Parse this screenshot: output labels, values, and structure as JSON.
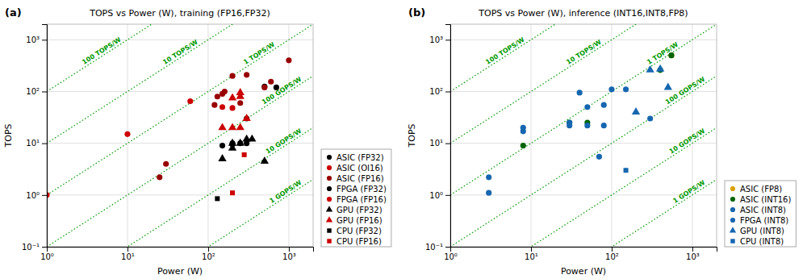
{
  "chart_data": [
    {
      "type": "scatter",
      "title": "TOPS vs Power (W), training (FP16,FP32)",
      "x_label": "Power (W)",
      "y_label": "TOPS",
      "log": true,
      "xlim": [
        1,
        2000
      ],
      "ylim": [
        0.1,
        2000
      ],
      "xticks": [
        {
          "value": 1,
          "label": "10⁰"
        },
        {
          "value": 10,
          "label": "10¹"
        },
        {
          "value": 100,
          "label": "10²"
        },
        {
          "value": 1000,
          "label": "10³"
        }
      ],
      "yticks": [
        {
          "value": 0.1,
          "label": "10⁻¹"
        },
        {
          "value": 1,
          "label": "10⁰"
        },
        {
          "value": 10,
          "label": "10¹"
        },
        {
          "value": 100,
          "label": "10²"
        },
        {
          "value": 1000,
          "label": "10³"
        }
      ],
      "grid": true,
      "legend": "right",
      "annotations": [
        {
          "text": "(a)"
        },
        {
          "text": "100 TOPS/W",
          "slope": 100,
          "x": 3,
          "y": 300,
          "color": "#009900",
          "line_style": "dotted"
        },
        {
          "text": "10 TOPS/W",
          "slope": 10,
          "x": 30,
          "y": 300,
          "color": "#009900",
          "line_style": "dotted"
        },
        {
          "text": "1 TOPS/W",
          "slope": 1,
          "x": 300,
          "y": 300,
          "color": "#009900",
          "line_style": "dotted"
        },
        {
          "text": "100 GOPS/W",
          "slope": 0.1,
          "x": 1600,
          "y": 160,
          "color": "#009900",
          "line_style": "dotted"
        },
        {
          "text": "10 GOPS/W",
          "slope": 0.01,
          "x": 1600,
          "y": 16,
          "color": "#009900",
          "line_style": "dotted"
        },
        {
          "text": "1 GOPS/W",
          "slope": 0.001,
          "x": 1600,
          "y": 1.6,
          "color": "#009900",
          "line_style": "dotted"
        }
      ],
      "series": [
        {
          "name": "ASIC (FP32)",
          "color": "#000000",
          "marker": "circle",
          "x": [
            200,
            300,
            500,
            700
          ],
          "values": [
            10,
            30,
            125,
            120
          ]
        },
        {
          "name": "ASIC (OI16)",
          "color": "#cc0000",
          "marker": "circle",
          "x": [
            1,
            10
          ],
          "values": [
            1,
            15
          ]
        },
        {
          "name": "ASIC (FP16)",
          "color": "#990000",
          "marker": "circle",
          "x": [
            25,
            30,
            120,
            130,
            150,
            160,
            200,
            250,
            300,
            500,
            600,
            1000
          ],
          "values": [
            2.2,
            4,
            55,
            80,
            90,
            100,
            200,
            60,
            210,
            120,
            155,
            400
          ]
        },
        {
          "name": "FPGA (FP32)",
          "color": "#000000",
          "marker": "circle",
          "x": [
            150,
            200,
            250,
            300
          ],
          "values": [
            9,
            9.5,
            10,
            10
          ]
        },
        {
          "name": "FPGA (FP16)",
          "color": "#cc0000",
          "marker": "circle",
          "x": [
            60,
            150,
            200
          ],
          "values": [
            65,
            50,
            48
          ]
        },
        {
          "name": "GPU (FP32)",
          "color": "#000000",
          "marker": "triangle",
          "x": [
            150,
            200,
            200,
            250,
            300,
            350,
            500
          ],
          "values": [
            5,
            8,
            10,
            10,
            12,
            12,
            4.5
          ]
        },
        {
          "name": "GPU (FP16)",
          "color": "#cc0000",
          "marker": "triangle",
          "x": [
            150,
            200,
            250,
            200,
            250,
            250,
            300
          ],
          "values": [
            20,
            20,
            20,
            75,
            80,
            95,
            30
          ]
        },
        {
          "name": "CPU (FP32)",
          "color": "#000000",
          "marker": "square",
          "x": [
            130
          ],
          "values": [
            0.85
          ]
        },
        {
          "name": "CPU (FP16)",
          "color": "#cc0000",
          "marker": "square",
          "x": [
            200,
            280
          ],
          "values": [
            1.1,
            6
          ]
        }
      ]
    },
    {
      "type": "scatter",
      "title": "TOPS vs Power (W), inference (INT16,INT8,FP8)",
      "x_label": "Power (W)",
      "y_label": "TOPS",
      "log": true,
      "xlim": [
        1,
        2000
      ],
      "ylim": [
        0.1,
        2000
      ],
      "xticks": [
        {
          "value": 1,
          "label": "10⁰"
        },
        {
          "value": 10,
          "label": "10¹"
        },
        {
          "value": 100,
          "label": "10²"
        },
        {
          "value": 1000,
          "label": "10³"
        }
      ],
      "yticks": [
        {
          "value": 0.1,
          "label": "10⁻¹"
        },
        {
          "value": 1,
          "label": "10⁰"
        },
        {
          "value": 10,
          "label": "10¹"
        },
        {
          "value": 100,
          "label": "10²"
        },
        {
          "value": 1000,
          "label": "10³"
        }
      ],
      "grid": true,
      "legend": "right",
      "annotations": [
        {
          "text": "(b)"
        },
        {
          "text": "100 TOPS/W",
          "slope": 100,
          "x": 3,
          "y": 300,
          "color": "#009900",
          "line_style": "dotted"
        },
        {
          "text": "10 TOPS/W",
          "slope": 10,
          "x": 30,
          "y": 300,
          "color": "#009900",
          "line_style": "dotted"
        },
        {
          "text": "1 TOPS/W",
          "slope": 1,
          "x": 300,
          "y": 300,
          "color": "#009900",
          "line_style": "dotted"
        },
        {
          "text": "100 GOPS/W",
          "slope": 0.1,
          "x": 1600,
          "y": 160,
          "color": "#009900",
          "line_style": "dotted"
        },
        {
          "text": "10 GOPS/W",
          "slope": 0.01,
          "x": 1600,
          "y": 16,
          "color": "#009900",
          "line_style": "dotted"
        },
        {
          "text": "1 GOPS/W",
          "slope": 0.001,
          "x": 1600,
          "y": 1.6,
          "color": "#009900",
          "line_style": "dotted"
        }
      ],
      "series": [
        {
          "name": "ASIC (FP8)",
          "color": "#DAA000",
          "marker": "circle",
          "x": [
            550
          ],
          "values": [
            500
          ]
        },
        {
          "name": "ASIC (INT16)",
          "color": "#006400",
          "marker": "circle",
          "x": [
            8,
            30,
            50,
            400,
            550
          ],
          "values": [
            9,
            25,
            25,
            260,
            500
          ]
        },
        {
          "name": "ASIC (INT8)",
          "color": "#1666b0",
          "marker": "circle",
          "x": [
            3,
            3,
            8,
            8,
            30,
            40,
            50,
            70,
            80,
            100,
            150,
            300
          ],
          "values": [
            2.2,
            1.1,
            17,
            20,
            25,
            95,
            50,
            5.5,
            55,
            110,
            110,
            30
          ]
        },
        {
          "name": "FPGA (INT8)",
          "color": "#1666b0",
          "marker": "circle",
          "x": [
            30,
            50,
            80
          ],
          "values": [
            22,
            22,
            22
          ]
        },
        {
          "name": "GPU (INT8)",
          "color": "#1666b0",
          "marker": "triangle",
          "x": [
            200,
            300,
            400,
            500
          ],
          "values": [
            40,
            260,
            270,
            120
          ]
        },
        {
          "name": "CPU (INT8)",
          "color": "#1666b0",
          "marker": "square",
          "x": [
            150
          ],
          "values": [
            3
          ]
        }
      ]
    }
  ]
}
